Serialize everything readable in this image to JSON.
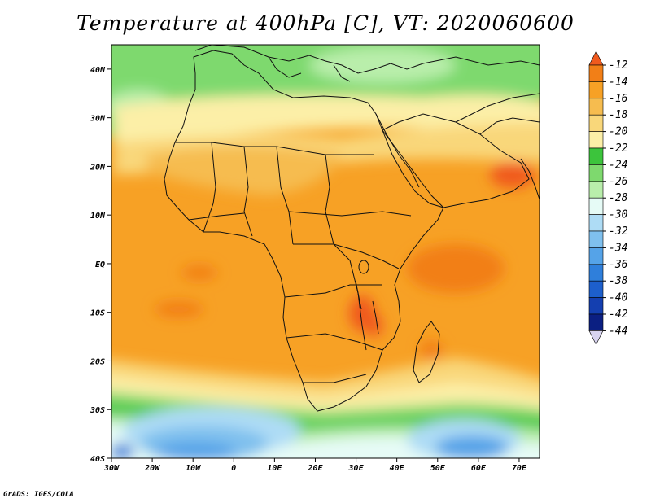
{
  "title": "Temperature at 400hPa [C], VT: 2020060600",
  "credit": "GrADS: IGES/COLA",
  "map": {
    "projection": "lat-lon",
    "lon_range": [
      -30,
      75
    ],
    "lat_range": [
      -40,
      45
    ],
    "variable": "Temperature at 400hPa",
    "units": "C",
    "x_tick_labels": [
      "30W",
      "20W",
      "10W",
      "0",
      "10E",
      "20E",
      "30E",
      "40E",
      "50E",
      "60E",
      "70E"
    ],
    "y_tick_labels": [
      "40N",
      "30N",
      "20N",
      "10N",
      "EQ",
      "10S",
      "20S",
      "30S",
      "40S"
    ]
  },
  "colorbar": {
    "orientation": "vertical",
    "labels": [
      "-12",
      "-14",
      "-16",
      "-18",
      "-20",
      "-22",
      "-24",
      "-26",
      "-28",
      "-30",
      "-32",
      "-34",
      "-36",
      "-38",
      "-40",
      "-42",
      "-44"
    ],
    "colors_top_to_bottom": [
      "#f05a1e",
      "#f27f17",
      "#f7a125",
      "#f6bc4f",
      "#f9d77a",
      "#fcefa7",
      "#3cc43c",
      "#7ed96e",
      "#b9eeab",
      "#e6fbf6",
      "#aedcf5",
      "#7fc0ee",
      "#55a3e8",
      "#2f7fdb",
      "#1d5fcc",
      "#143fb0",
      "#0b1f82",
      "#d8d4f0"
    ]
  },
  "colors": {
    "land_outline": "#111111",
    "background": "#ffffff"
  }
}
